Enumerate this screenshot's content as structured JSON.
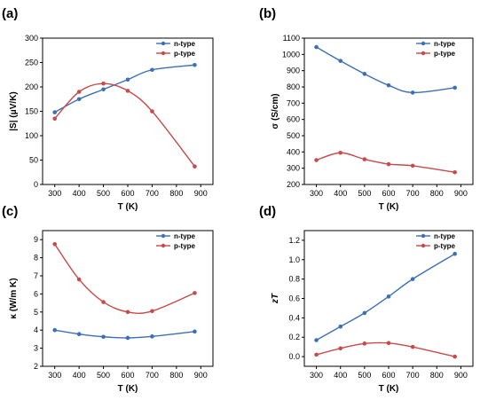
{
  "colors": {
    "n_type": "#3d6fb5",
    "p_type": "#c84a4a"
  },
  "chart_data": [
    {
      "type": "line",
      "panel_label": "(a)",
      "xlabel": "T (K)",
      "ylabel": "|S| (μV/K)",
      "xlim": [
        250,
        950
      ],
      "ylim": [
        0,
        300
      ],
      "xticks": [
        300,
        400,
        500,
        600,
        700,
        800,
        900
      ],
      "yticks": [
        0,
        50,
        100,
        150,
        200,
        250,
        300
      ],
      "grid": false,
      "legend_position": "top-right",
      "series": [
        {
          "name": "n-type",
          "color_key": "n_type",
          "x": [
            300,
            400,
            500,
            600,
            700,
            875
          ],
          "y": [
            148,
            175,
            195,
            215,
            235,
            245
          ]
        },
        {
          "name": "p-type",
          "color_key": "p_type",
          "x": [
            300,
            400,
            500,
            600,
            700,
            875
          ],
          "y": [
            135,
            190,
            207,
            192,
            150,
            37
          ]
        }
      ]
    },
    {
      "type": "line",
      "panel_label": "(b)",
      "xlabel": "T (K)",
      "ylabel": "σ (S/cm)",
      "xlim": [
        250,
        950
      ],
      "ylim": [
        200,
        1100
      ],
      "xticks": [
        300,
        400,
        500,
        600,
        700,
        800,
        900
      ],
      "yticks": [
        200,
        300,
        400,
        500,
        600,
        700,
        800,
        900,
        1000,
        1100
      ],
      "grid": false,
      "legend_position": "top-right",
      "series": [
        {
          "name": "n-type",
          "color_key": "n_type",
          "x": [
            300,
            400,
            500,
            600,
            700,
            875
          ],
          "y": [
            1045,
            960,
            880,
            810,
            765,
            795
          ]
        },
        {
          "name": "p-type",
          "color_key": "p_type",
          "x": [
            300,
            400,
            500,
            600,
            700,
            875
          ],
          "y": [
            350,
            395,
            355,
            325,
            315,
            275
          ]
        }
      ]
    },
    {
      "type": "line",
      "panel_label": "(c)",
      "xlabel": "T (K)",
      "ylabel": "κ (W/m K)",
      "xlim": [
        250,
        950
      ],
      "ylim": [
        2,
        9.5
      ],
      "xticks": [
        300,
        400,
        500,
        600,
        700,
        800,
        900
      ],
      "yticks": [
        2,
        3,
        4,
        5,
        6,
        7,
        8,
        9
      ],
      "grid": false,
      "legend_position": "top-right",
      "series": [
        {
          "name": "n-type",
          "color_key": "n_type",
          "x": [
            300,
            400,
            500,
            600,
            700,
            875
          ],
          "y": [
            4.0,
            3.78,
            3.63,
            3.57,
            3.65,
            3.92
          ]
        },
        {
          "name": "p-type",
          "color_key": "p_type",
          "x": [
            300,
            400,
            500,
            600,
            700,
            875
          ],
          "y": [
            8.75,
            6.8,
            5.55,
            5.0,
            5.05,
            6.05
          ]
        }
      ]
    },
    {
      "type": "line",
      "panel_label": "(d)",
      "xlabel": "T (K)",
      "ylabel": "zT",
      "xlim": [
        250,
        950
      ],
      "ylim": [
        -0.1,
        1.3
      ],
      "xticks": [
        300,
        400,
        500,
        600,
        700,
        800,
        900
      ],
      "yticks": [
        0.0,
        0.2,
        0.4,
        0.6,
        0.8,
        1.0,
        1.2
      ],
      "ytick_decimals": 1,
      "grid": false,
      "legend_position": "top-left",
      "series": [
        {
          "name": "n-type",
          "color_key": "n_type",
          "x": [
            300,
            400,
            500,
            600,
            700,
            875
          ],
          "y": [
            0.17,
            0.31,
            0.45,
            0.62,
            0.8,
            1.06
          ]
        },
        {
          "name": "p-type",
          "color_key": "p_type",
          "x": [
            300,
            400,
            500,
            600,
            700,
            875
          ],
          "y": [
            0.02,
            0.085,
            0.135,
            0.14,
            0.1,
            0.0
          ]
        }
      ]
    }
  ]
}
